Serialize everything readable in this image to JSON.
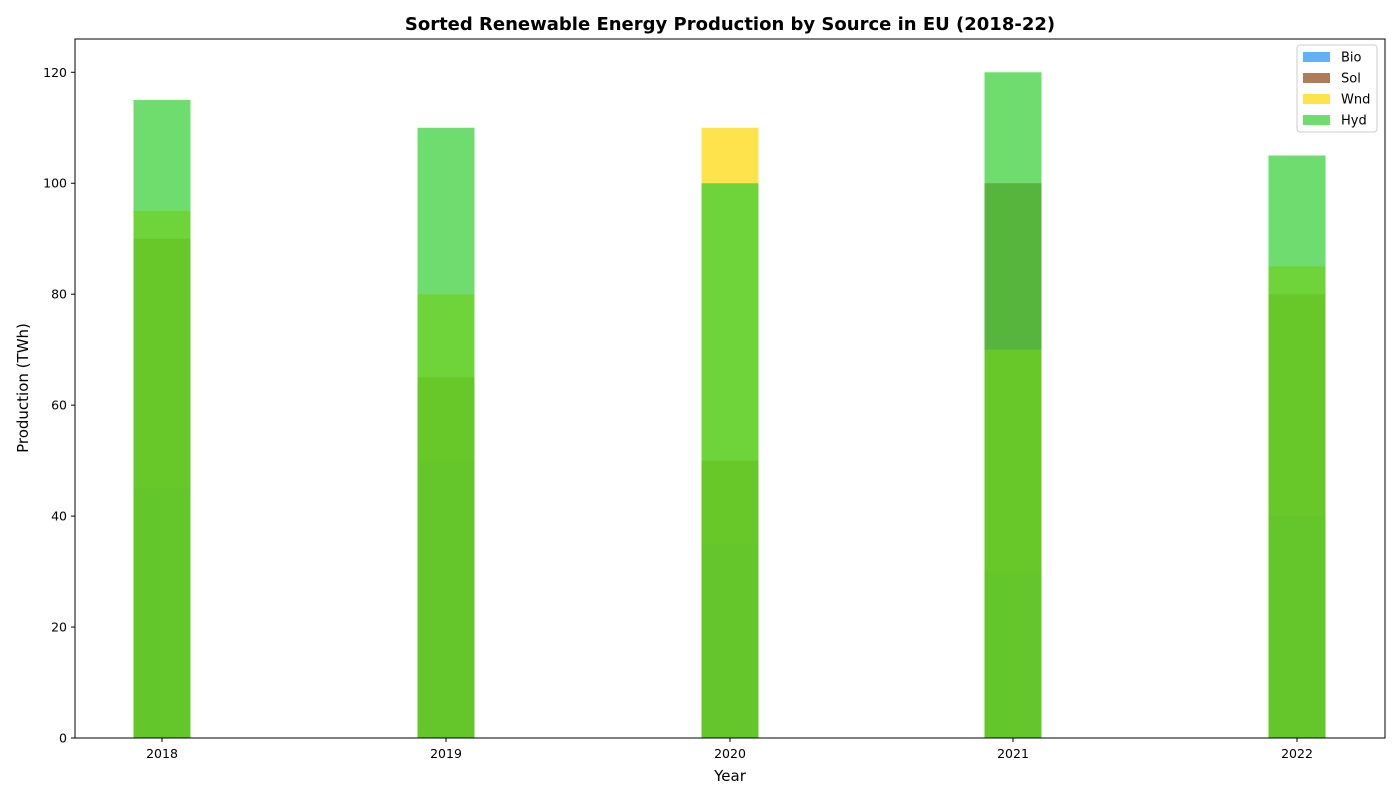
{
  "chart_data": {
    "type": "bar",
    "title": "Sorted Renewable Energy Production by Source in EU (2018-22)",
    "xlabel": "Year",
    "ylabel": "Production (TWh)",
    "categories": [
      "2018",
      "2019",
      "2020",
      "2021",
      "2022"
    ],
    "ylim": [
      0,
      126
    ],
    "yticks": [
      0,
      20,
      40,
      60,
      80,
      100,
      120
    ],
    "grid": false,
    "legend_position": "top-right",
    "series": [
      {
        "name": "Bio",
        "color": "#1f8ef1",
        "values": [
          45,
          50,
          35,
          30,
          40
        ]
      },
      {
        "name": "Sol",
        "color": "#8b4513",
        "values": [
          90,
          65,
          50,
          100,
          80
        ]
      },
      {
        "name": "Wnd",
        "color": "#ffd700",
        "values": [
          95,
          80,
          110,
          70,
          85
        ]
      },
      {
        "name": "Hyd",
        "color": "#32cd32",
        "values": [
          115,
          110,
          100,
          120,
          105
        ]
      }
    ],
    "bar_opacity": 0.7
  }
}
